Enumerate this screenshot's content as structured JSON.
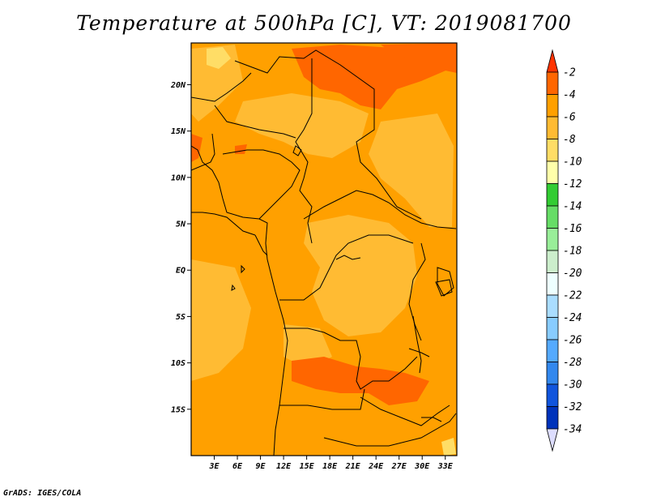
{
  "title": "Temperature at 500hPa [C], VT: 2019081700",
  "credit": "GrADS: IGES/COLA",
  "map": {
    "variable": "Temperature at 500hPa",
    "units": "C",
    "valid_time": "2019081700",
    "lon_range": [
      0,
      34.5
    ],
    "lat_range": [
      -20,
      24.5
    ],
    "lat_ticks": [
      {
        "value": 20,
        "label": "20N"
      },
      {
        "value": 15,
        "label": "15N"
      },
      {
        "value": 10,
        "label": "10N"
      },
      {
        "value": 5,
        "label": "5N"
      },
      {
        "value": 0,
        "label": "EQ"
      },
      {
        "value": -5,
        "label": "5S"
      },
      {
        "value": -10,
        "label": "10S"
      },
      {
        "value": -15,
        "label": "15S"
      }
    ],
    "lon_ticks": [
      {
        "value": 3,
        "label": "3E"
      },
      {
        "value": 6,
        "label": "6E"
      },
      {
        "value": 9,
        "label": "9E"
      },
      {
        "value": 12,
        "label": "12E"
      },
      {
        "value": 15,
        "label": "15E"
      },
      {
        "value": 18,
        "label": "18E"
      },
      {
        "value": 21,
        "label": "21E"
      },
      {
        "value": 24,
        "label": "24E"
      },
      {
        "value": 27,
        "label": "27E"
      },
      {
        "value": 30,
        "label": "30E"
      },
      {
        "value": 33,
        "label": "33E"
      }
    ],
    "dominant_field_color": "#ffa000",
    "warm_patch_color": "#ff6600",
    "cool_patch_color": "#ffbb33",
    "coolest_patch_color": "#ffdd66"
  },
  "colorbar": {
    "levels": [
      "-2",
      "-4",
      "-6",
      "-8",
      "-10",
      "-12",
      "-14",
      "-16",
      "-18",
      "-20",
      "-22",
      "-24",
      "-26",
      "-28",
      "-30",
      "-32",
      "-34"
    ],
    "colors": [
      "#ff3300",
      "#ff6600",
      "#ffa000",
      "#ffbb33",
      "#ffdd66",
      "#ffffaa",
      "#33cc33",
      "#66dd66",
      "#99ee99",
      "#cceecc",
      "#eeffff",
      "#aaddff",
      "#88ccff",
      "#55aaff",
      "#3388ee",
      "#1155dd",
      "#0033bb",
      "#000077"
    ],
    "top_arrow_color": "#ff3300",
    "bottom_arrow_color": "#ddddff"
  }
}
